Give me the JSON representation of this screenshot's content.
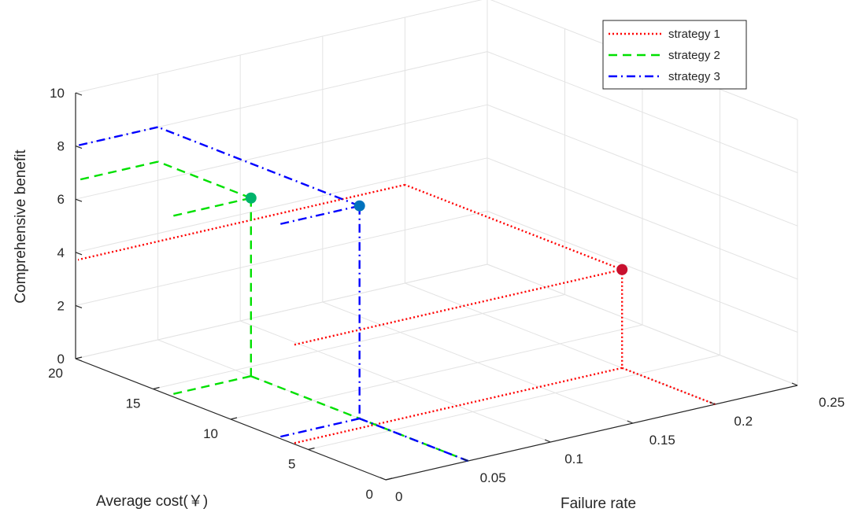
{
  "chart_data": {
    "type": "line3d",
    "title": "",
    "xlabel": "Failure rate",
    "ylabel": "Average cost(￥)",
    "zlabel": "Comprehensive benefit",
    "xlim": [
      0,
      0.25
    ],
    "ylim": [
      0,
      20
    ],
    "zlim": [
      0,
      10
    ],
    "x_ticks": [
      "0",
      "0.05",
      "0.1",
      "0.15",
      "0.2",
      "0.25"
    ],
    "y_ticks": [
      "0",
      "5",
      "10",
      "15",
      "20"
    ],
    "z_ticks": [
      "0",
      "2",
      "4",
      "6",
      "8",
      "10"
    ],
    "grid": true,
    "legend_position": "top-right",
    "series": [
      {
        "name": "strategy 1",
        "color": "#ff0000",
        "line_style": "dotted",
        "marker_color": "#c8102e",
        "point": {
          "x": 0.2,
          "y": 6,
          "z": 3.7
        }
      },
      {
        "name": "strategy 2",
        "color": "#00e000",
        "line_style": "dashed",
        "marker_color": "#00b36b",
        "point": {
          "x": 0.05,
          "y": 14,
          "z": 6.7
        }
      },
      {
        "name": "strategy 3",
        "color": "#0000ff",
        "line_style": "dashdot",
        "marker_color": "#0072bd",
        "point": {
          "x": 0.05,
          "y": 7,
          "z": 8.0
        }
      }
    ]
  }
}
